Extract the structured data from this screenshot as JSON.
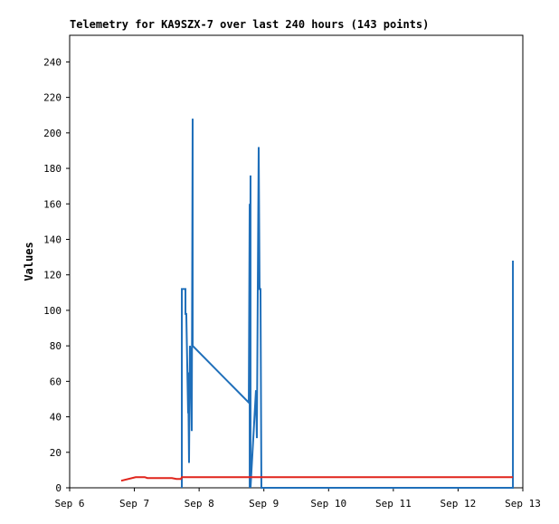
{
  "chart_data": {
    "type": "line",
    "title": "Telemetry for KA9SZX-7 over last 240 hours (143 points)",
    "y_label": "Values",
    "xlim": [
      6,
      13
    ],
    "ylim": [
      0,
      255
    ],
    "xticks": [
      {
        "value": 6,
        "label": "Sep 6"
      },
      {
        "value": 7,
        "label": "Sep 7"
      },
      {
        "value": 8,
        "label": "Sep 8"
      },
      {
        "value": 9,
        "label": "Sep 9"
      },
      {
        "value": 10,
        "label": "Sep 10"
      },
      {
        "value": 11,
        "label": "Sep 11"
      },
      {
        "value": 12,
        "label": "Sep 12"
      },
      {
        "value": 13,
        "label": "Sep 13"
      }
    ],
    "yticks": [
      0,
      20,
      40,
      60,
      80,
      100,
      120,
      140,
      160,
      180,
      200,
      220,
      240
    ],
    "series": [
      {
        "color": "#1f6fba",
        "x": [
          7.733,
          7.733,
          7.789,
          7.789,
          7.802,
          7.816,
          7.83,
          7.83,
          7.844,
          7.858,
          7.872,
          7.886,
          7.9,
          7.9,
          8.767,
          8.781,
          8.781,
          8.794,
          8.794,
          8.878,
          8.892,
          8.906,
          8.92,
          8.934,
          8.948,
          8.962,
          12.847,
          12.847
        ],
        "values": [
          0,
          112,
          112,
          98,
          98,
          70,
          42,
          65,
          14,
          80,
          75,
          32,
          208,
          80,
          48,
          160,
          0,
          176,
          0,
          55,
          28,
          112,
          192,
          112,
          112,
          0,
          0,
          128
        ]
      },
      {
        "color": "#e0241b",
        "x": [
          6.796,
          7.02,
          7.16,
          7.2,
          7.58,
          7.65,
          7.72,
          7.733,
          12.847
        ],
        "values": [
          4,
          6,
          6,
          5.5,
          5.5,
          5,
          5,
          6,
          6
        ]
      }
    ]
  }
}
